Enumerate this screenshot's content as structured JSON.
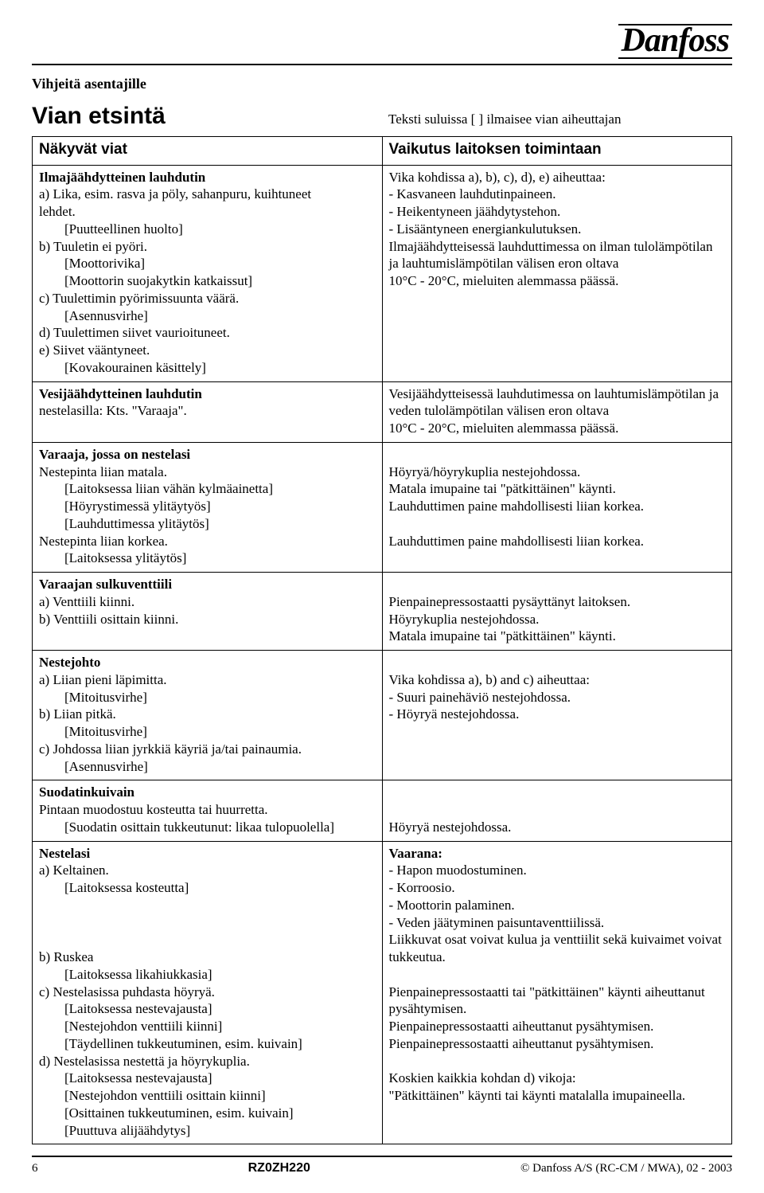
{
  "logo_text": "Danfoss",
  "pretitle": "Vihjeitä asentajille",
  "main_title": "Vian etsintä",
  "bracket_note": "Teksti suluissa [ ] ilmaisee vian aiheuttajan",
  "table": {
    "header_left": "Näkyvät viat",
    "header_right": "Vaikutus laitoksen toimintaan",
    "rows": [
      {
        "left": {
          "heading": "Ilmajäähdytteinen lauhdutin",
          "lines": [
            {
              "t": "a) Lika, esim. rasva ja pöly, sahanpuru, kuihtuneet"
            },
            {
              "t": "lehdet."
            },
            {
              "t": "[Puutteellinen huolto]",
              "ind": true
            },
            {
              "t": "b) Tuuletin ei pyöri."
            },
            {
              "t": "[Moottorivika]",
              "ind": true
            },
            {
              "t": "[Moottorin suojakytkin katkaissut]",
              "ind": true
            },
            {
              "t": "c) Tuulettimin pyörimissuunta väärä."
            },
            {
              "t": "[Asennusvirhe]",
              "ind": true
            },
            {
              "t": "d) Tuulettimen siivet vaurioituneet."
            },
            {
              "t": "e) Siivet vääntyneet."
            },
            {
              "t": "[Kovakourainen käsittely]",
              "ind": true
            }
          ]
        },
        "right": {
          "lines": [
            {
              "t": "Vika kohdissa a), b), c), d), e) aiheuttaa:"
            },
            {
              "t": "- Kasvaneen lauhdutinpaineen."
            },
            {
              "t": "- Heikentyneen jäähdytystehon."
            },
            {
              "t": "- Lisääntyneen energiankulutuksen."
            },
            {
              "t": "Ilmajäähdytteisessä lauhduttimessa on ilman tulolämpö­tilan ja lauhtumislämpötilan välisen eron oltava"
            },
            {
              "t": "10°C - 20°C, mieluiten alemmassa päässä."
            }
          ]
        }
      },
      {
        "left": {
          "heading": "Vesijäähdytteinen lauhdutin",
          "lines": [
            {
              "t": "nestelasilla: Kts. \"Varaaja\"."
            }
          ]
        },
        "right": {
          "lines": [
            {
              "t": "Vesijäähdytteisessä lauhdutimessa on lauhtumislämpöti­lan ja veden tulolämpötilan välisen eron oltava"
            },
            {
              "t": "10°C - 20°C, mieluiten alemmassa päässä."
            }
          ]
        }
      },
      {
        "left": {
          "heading": "Varaaja, jossa on nestelasi",
          "lines": [
            {
              "t": "Nestepinta liian matala."
            },
            {
              "t": "[Laitoksessa liian vähän kylmäainetta]",
              "ind": true
            },
            {
              "t": "[Höyrystimessä ylitäytyös]",
              "ind": true
            },
            {
              "t": "[Lauhduttimessa ylitäytös]",
              "ind": true
            },
            {
              "t": "Nestepinta liian korkea."
            },
            {
              "t": "[Laitoksessa ylitäytös]",
              "ind": true
            }
          ]
        },
        "right": {
          "lines": [
            {
              "t": ""
            },
            {
              "t": "Höyryä/höyrykuplia nestejohdossa."
            },
            {
              "t": "Matala imupaine tai \"pätkittäinen\" käynti."
            },
            {
              "t": "Lauhduttimen paine mahdollisesti liian korkea."
            },
            {
              "t": ""
            },
            {
              "t": "Lauhduttimen paine mahdollisesti liian korkea."
            }
          ]
        }
      },
      {
        "left": {
          "heading": "Varaajan sulkuventtiili",
          "lines": [
            {
              "t": "a) Venttiili kiinni."
            },
            {
              "t": "b) Venttiili osittain kiinni."
            }
          ]
        },
        "right": {
          "lines": [
            {
              "t": ""
            },
            {
              "t": "Pienpainepressostaatti pysäyttänyt laitoksen."
            },
            {
              "t": "Höyrykuplia nestejohdossa."
            },
            {
              "t": "Matala imupaine tai \"pätkittäinen\" käynti."
            }
          ]
        }
      },
      {
        "left": {
          "heading": "Nestejohto",
          "lines": [
            {
              "t": "a) Liian pieni läpimitta."
            },
            {
              "t": "[Mitoitusvirhe]",
              "ind": true
            },
            {
              "t": "b) Liian pitkä."
            },
            {
              "t": "[Mitoitusvirhe]",
              "ind": true
            },
            {
              "t": "c)  Johdossa liian jyrkkiä käyriä ja/tai painaumia."
            },
            {
              "t": "[Asennusvirhe]",
              "ind": true
            }
          ]
        },
        "right": {
          "lines": [
            {
              "t": ""
            },
            {
              "t": "Vika kohdissa a), b) and c) aiheuttaa:"
            },
            {
              "t": "- Suuri painehäviö nestejohdossa."
            },
            {
              "t": "- Höyryä nestejohdossa."
            }
          ]
        }
      },
      {
        "left": {
          "heading": "Suodatinkuivain",
          "lines": [
            {
              "t": "Pintaan muodostuu kosteutta tai huurretta."
            },
            {
              "t": "[Suodatin osittain tukkeutunut: likaa tulopuolella]",
              "ind": true
            }
          ]
        },
        "right": {
          "lines": [
            {
              "t": ""
            },
            {
              "t": ""
            },
            {
              "t": "Höyryä nestejohdossa."
            }
          ]
        }
      },
      {
        "left": {
          "heading": "Nestelasi",
          "lines": [
            {
              "t": "a) Keltainen."
            },
            {
              "t": "[Laitoksessa kosteutta]",
              "ind": true
            },
            {
              "t": ""
            },
            {
              "t": ""
            },
            {
              "t": ""
            },
            {
              "t": "b) Ruskea"
            },
            {
              "t": "[Laitoksessa likahiukkasia]",
              "ind": true
            },
            {
              "t": "c) Nestelasissa puhdasta höyryä."
            },
            {
              "t": "[Laitoksessa nestevajausta]",
              "ind": true
            },
            {
              "t": "[Nestejohdon venttiili kiinni]",
              "ind": true
            },
            {
              "t": "[Täydellinen tukkeutuminen, esim. kuivain]",
              "ind": true
            },
            {
              "t": "d) Nestelasissa nestettä ja höyrykuplia."
            },
            {
              "t": "[Laitoksessa nestevajausta]",
              "ind": true
            },
            {
              "t": "[Nestejohdon venttiili osittain kiinni]",
              "ind": true
            },
            {
              "t": "[Osittainen tukkeutuminen, esim. kuivain]",
              "ind": true
            },
            {
              "t": "[Puuttuva alijäähdytys]",
              "ind": true
            }
          ]
        },
        "right": {
          "lines": [
            {
              "t": "Vaarana:",
              "b": true
            },
            {
              "t": "- Hapon muodostuminen."
            },
            {
              "t": "- Korroosio."
            },
            {
              "t": "- Moottorin palaminen."
            },
            {
              "t": "- Veden jäätyminen paisuntaventtiilissä."
            },
            {
              "t": "Liikkuvat osat voivat kulua ja venttiilit sekä kuivaimet voivat tukkeutua."
            },
            {
              "t": ""
            },
            {
              "t": "Pienpainepressostaatti tai \"pätkittäinen\" käynti aiheuttanut pysähtymisen."
            },
            {
              "t": "Pienpainepressostaatti aiheuttanut pysähtymisen."
            },
            {
              "t": "Pienpainepressostaatti aiheuttanut pysähtymisen."
            },
            {
              "t": ""
            },
            {
              "t": "Koskien kaikkia kohdan d) vikoja:"
            },
            {
              "t": "\"Pätkittäinen\"  käynti tai käynti matalalla imupaineella."
            }
          ]
        }
      }
    ]
  },
  "footer": {
    "page": "6",
    "code": "RZ0ZH220",
    "copyright": "©  Danfoss A/S  (RC-CM / MWA),  02 - 2003"
  }
}
